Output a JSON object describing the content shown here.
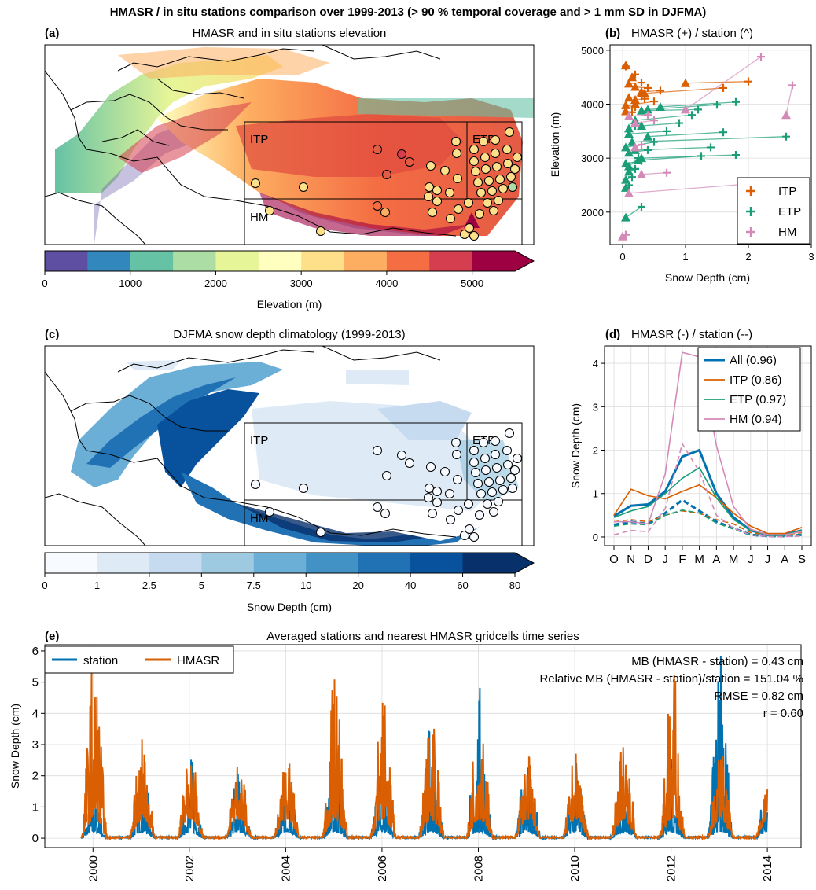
{
  "suptitle": "HMASR / in situ stations comparison over 1999-2013 (> 90 % temporal coverage and > 1 mm SD in DJFMA)",
  "panels": {
    "a": {
      "label": "(a)",
      "title": "HMASR and in situ stations elevation",
      "regions": [
        "ITP",
        "ETP",
        "HM"
      ]
    },
    "b": {
      "label": "(b)",
      "title": "HMASR (+) / station (^)"
    },
    "c": {
      "label": "(c)",
      "title": "DJFMA snow depth climatology (1999-2013)",
      "regions": [
        "ITP",
        "ETP",
        "HM"
      ]
    },
    "d": {
      "label": "(d)",
      "title": "HMASR (-) / station (--)"
    },
    "e": {
      "label": "(e)",
      "title": "Averaged stations and nearest HMASR gridcells time series",
      "stats": [
        "MB (HMASR - station) = 0.43 cm",
        "Relative MB (HMASR - station)/station = 151.04 %",
        "RMSE = 0.82 cm",
        "r = 0.60"
      ]
    }
  },
  "colorbars": {
    "elevation": {
      "label": "Elevation (m)",
      "ticks": [
        "0",
        "1000",
        "2000",
        "3000",
        "4000",
        "5000"
      ],
      "colors": [
        "#5e4fa2",
        "#3288bd",
        "#66c2a5",
        "#abdda4",
        "#e6f598",
        "#ffffbf",
        "#fee08b",
        "#fdae61",
        "#f46d43",
        "#d53e4f",
        "#9e0142"
      ]
    },
    "snow": {
      "label": "Snow Depth (cm)",
      "ticks": [
        "0",
        "1",
        "2.5",
        "5",
        "7.5",
        "10",
        "20",
        "40",
        "60",
        "80"
      ],
      "colors": [
        "#f7fbff",
        "#deebf7",
        "#c6dbef",
        "#9ecae1",
        "#6baed6",
        "#4292c6",
        "#2171b5",
        "#08519c",
        "#08306b"
      ]
    }
  },
  "colors": {
    "ITP": "#d95f02",
    "ETP": "#1b9e77",
    "HM": "#d48ab8",
    "All": "#0072b2",
    "station": "#0072b2",
    "HMASR": "#d95f02"
  },
  "chart_data": [
    {
      "id": "b",
      "type": "scatter",
      "xlabel": "Snow Depth (cm)",
      "ylabel": "Elevation (m)",
      "xlim": [
        -0.2,
        3
      ],
      "ylim": [
        1400,
        5100
      ],
      "xticks": [
        0,
        1,
        2,
        3
      ],
      "yticks": [
        2000,
        3000,
        4000,
        5000
      ],
      "legend": "bottom-right",
      "series": [
        {
          "name": "ITP",
          "pairs": [
            [
              0.05,
              4700,
              0.05,
              4720
            ],
            [
              0.2,
              4550,
              0.15,
              4500
            ],
            [
              0.3,
              4400,
              0.1,
              4380
            ],
            [
              0.4,
              4300,
              0.2,
              4320
            ],
            [
              2.0,
              4420,
              1.0,
              4390
            ],
            [
              1.6,
              4300,
              0.35,
              4200
            ],
            [
              0.6,
              4250,
              0.3,
              4230
            ],
            [
              0.3,
              4150,
              0.1,
              4120
            ],
            [
              0.5,
              4050,
              0.2,
              4000
            ],
            [
              0.2,
              3950,
              0.05,
              3980
            ],
            [
              0.35,
              4100,
              0.2,
              4080
            ],
            [
              0.15,
              3850,
              0.05,
              3870
            ]
          ]
        },
        {
          "name": "ETP",
          "pairs": [
            [
              1.8,
              4040,
              0.6,
              3950
            ],
            [
              1.5,
              3990,
              0.4,
              3900
            ],
            [
              2.6,
              3400,
              0.15,
              3300
            ],
            [
              1.2,
              3900,
              0.3,
              3880
            ],
            [
              1.1,
              3800,
              0.2,
              3700
            ],
            [
              0.9,
              3650,
              0.3,
              3600
            ],
            [
              1.6,
              3480,
              0.4,
              3400
            ],
            [
              1.4,
              3200,
              0.2,
              3150
            ],
            [
              1.8,
              3060,
              0.3,
              3000
            ],
            [
              1.25,
              3040,
              0.25,
              2960
            ],
            [
              0.7,
              3500,
              0.1,
              3450
            ],
            [
              0.5,
              3300,
              0.05,
              3200
            ],
            [
              0.4,
              3150,
              0.1,
              3100
            ],
            [
              0.3,
              2950,
              0.05,
              2900
            ],
            [
              0.2,
              2800,
              0.1,
              2750
            ],
            [
              0.15,
              2650,
              0.05,
              2600
            ],
            [
              0.1,
              2500,
              0.05,
              2450
            ],
            [
              0.3,
              2100,
              0.05,
              1900
            ],
            [
              0.2,
              3600,
              0.1,
              3550
            ],
            [
              0.25,
              3000,
              0.1,
              2850
            ]
          ]
        },
        {
          "name": "HM",
          "pairs": [
            [
              2.2,
              4880,
              1.0,
              3900
            ],
            [
              2.7,
              4350,
              2.6,
              3800
            ],
            [
              2.3,
              2550,
              0.1,
              2350
            ],
            [
              0.7,
              2730,
              0.3,
              2700
            ],
            [
              0.3,
              3250,
              0.2,
              3200
            ],
            [
              0.4,
              3800,
              0.1,
              3780
            ],
            [
              0.05,
              1580,
              0.0,
              1550
            ],
            [
              0.5,
              3700,
              0.2,
              3650
            ]
          ]
        }
      ]
    },
    {
      "id": "d",
      "type": "line",
      "ylabel": "Snow Depth (cm)",
      "categories": [
        "O",
        "N",
        "D",
        "J",
        "F",
        "M",
        "A",
        "M",
        "J",
        "J",
        "A",
        "S"
      ],
      "ylim": [
        -0.2,
        4.4
      ],
      "yticks": [
        0,
        1,
        2,
        3,
        4
      ],
      "legend": "top-right",
      "series": [
        {
          "name": "All (0.96)",
          "key": "All",
          "hmasr": [
            0.48,
            0.72,
            0.75,
            1.05,
            1.85,
            2.0,
            1.0,
            0.45,
            0.15,
            0.05,
            0.05,
            0.15
          ],
          "station": [
            0.28,
            0.35,
            0.3,
            0.55,
            0.85,
            0.6,
            0.35,
            0.2,
            0.05,
            0.02,
            0.02,
            0.05
          ]
        },
        {
          "name": "ITP (0.86)",
          "key": "ITP",
          "hmasr": [
            0.5,
            1.1,
            0.95,
            0.88,
            1.05,
            1.2,
            0.9,
            0.55,
            0.25,
            0.08,
            0.08,
            0.22
          ],
          "station": [
            0.35,
            0.4,
            0.35,
            0.5,
            0.6,
            0.55,
            0.4,
            0.3,
            0.1,
            0.05,
            0.05,
            0.1
          ]
        },
        {
          "name": "ETP (0.97)",
          "key": "ETP",
          "hmasr": [
            0.45,
            0.6,
            0.7,
            1.0,
            1.35,
            1.6,
            0.9,
            0.4,
            0.15,
            0.05,
            0.05,
            0.15
          ],
          "station": [
            0.25,
            0.3,
            0.28,
            0.5,
            0.62,
            0.55,
            0.32,
            0.18,
            0.05,
            0.02,
            0.02,
            0.05
          ]
        },
        {
          "name": "HM (0.94)",
          "key": "HM",
          "hmasr": [
            0.35,
            0.35,
            0.3,
            1.45,
            4.25,
            4.15,
            2.1,
            0.7,
            0.18,
            0.05,
            0.05,
            0.12
          ],
          "station": [
            0.05,
            0.15,
            0.12,
            0.65,
            2.15,
            1.5,
            0.5,
            0.2,
            0.05,
            0.01,
            0.01,
            0.02
          ]
        }
      ]
    },
    {
      "id": "e",
      "type": "line",
      "ylabel": "Snow Depth (cm)",
      "xlim": [
        1999.0,
        2014.7
      ],
      "ylim": [
        -0.3,
        6.2
      ],
      "xticks": [
        "2000",
        "2002",
        "2004",
        "2006",
        "2008",
        "2010",
        "2012",
        "2014"
      ],
      "yticks": [
        0,
        1,
        2,
        3,
        4,
        5,
        6
      ],
      "legend": "top-left",
      "data_start": 1999.75,
      "data_end": 2014.0,
      "series": [
        {
          "name": "station",
          "winter_peaks": [
            1.2,
            2.1,
            2.6,
            2.0,
            1.9,
            2.6,
            2.2,
            3.4,
            4.9,
            2.6,
            2.3,
            1.7,
            2.4,
            5.8,
            2.1
          ]
        },
        {
          "name": "HMASR",
          "winter_peaks": [
            5.4,
            2.6,
            2.5,
            2.1,
            2.2,
            4.7,
            4.1,
            3.2,
            4.2,
            2.1,
            2.2,
            2.7,
            5.1,
            2.5,
            1.2
          ]
        }
      ]
    }
  ]
}
